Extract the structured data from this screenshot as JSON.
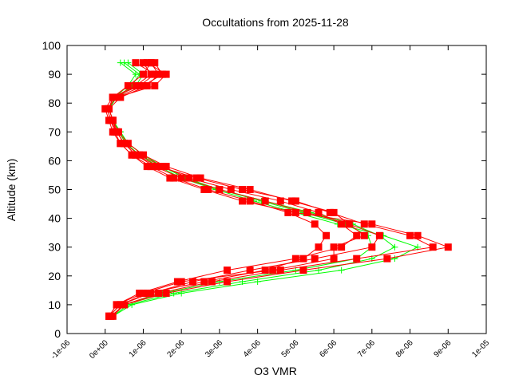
{
  "chart_data": {
    "type": "line",
    "title": "Occultations from 2025-11-28",
    "xlabel": "O3 VMR",
    "ylabel": "Altitude (km)",
    "xlim": [
      -1e-06,
      1e-05
    ],
    "ylim": [
      0,
      100
    ],
    "grid": false,
    "legend": "none",
    "x_tick_labels": [
      "-1e-06",
      "0e+00",
      "1e-06",
      "2e-06",
      "3e-06",
      "4e-06",
      "5e-06",
      "6e-06",
      "7e-06",
      "8e-06",
      "9e-06",
      "1e-05"
    ],
    "x_ticks": [
      -1e-06,
      0,
      1e-06,
      2e-06,
      3e-06,
      4e-06,
      5e-06,
      6e-06,
      7e-06,
      8e-06,
      9e-06,
      1e-05
    ],
    "y_tick_labels": [
      "0",
      "10",
      "20",
      "30",
      "40",
      "50",
      "60",
      "70",
      "80",
      "90",
      "100"
    ],
    "y_ticks": [
      0,
      10,
      20,
      30,
      40,
      50,
      60,
      70,
      80,
      90,
      100
    ],
    "altitude": [
      6,
      10,
      14,
      18,
      22,
      26,
      30,
      34,
      38,
      42,
      46,
      50,
      54,
      58,
      62,
      66,
      70,
      74,
      78,
      82,
      86,
      90,
      94
    ],
    "vmr_scale": 1e-06,
    "series": [
      {
        "group": "green",
        "marker": "plus",
        "color": "#00ff00",
        "values": [
          0.2,
          0.6,
          1.8,
          3.6,
          5.6,
          7.0,
          7.6,
          7.2,
          6.5,
          5.4,
          4.2,
          3.0,
          2.1,
          1.5,
          1.0,
          0.6,
          0.4,
          0.2,
          0.1,
          0.3,
          0.8,
          1.0,
          0.6
        ]
      },
      {
        "group": "green",
        "marker": "plus",
        "color": "#00ff00",
        "values": [
          0.2,
          0.7,
          2.0,
          4.0,
          6.2,
          7.6,
          8.2,
          7.3,
          6.1,
          5.0,
          3.9,
          2.9,
          2.0,
          1.4,
          0.9,
          0.55,
          0.35,
          0.2,
          0.1,
          0.3,
          0.7,
          0.9,
          0.5
        ]
      },
      {
        "group": "green",
        "marker": "plus",
        "color": "#00ff00",
        "values": [
          0.15,
          0.5,
          1.5,
          3.0,
          5.0,
          6.6,
          7.0,
          6.9,
          6.3,
          5.2,
          4.1,
          3.0,
          2.1,
          1.5,
          1.0,
          0.6,
          0.4,
          0.2,
          0.1,
          0.25,
          0.6,
          0.8,
          0.4
        ]
      },
      {
        "group": "red",
        "marker": "square",
        "color": "#ff0000",
        "values": [
          0.1,
          0.4,
          1.2,
          2.3,
          3.8,
          5.5,
          7.0,
          7.2,
          6.4,
          5.3,
          4.2,
          3.0,
          2.0,
          1.3,
          0.8,
          0.5,
          0.3,
          0.2,
          0.1,
          0.2,
          0.8,
          1.2,
          1.0
        ]
      },
      {
        "group": "red",
        "marker": "square",
        "color": "#ff0000",
        "values": [
          0.1,
          0.3,
          0.9,
          1.9,
          3.2,
          5.0,
          6.2,
          6.6,
          6.2,
          5.6,
          4.6,
          3.3,
          2.2,
          1.5,
          0.9,
          0.5,
          0.3,
          0.15,
          0.05,
          0.3,
          1.0,
          1.5,
          1.3
        ]
      },
      {
        "group": "red",
        "marker": "square",
        "color": "#ff0000",
        "values": [
          0.2,
          0.5,
          1.4,
          2.8,
          4.6,
          6.6,
          8.6,
          8.0,
          6.8,
          5.9,
          5.0,
          3.6,
          2.4,
          1.4,
          0.8,
          0.5,
          0.3,
          0.2,
          0.1,
          0.2,
          0.6,
          1.0,
          1.2
        ]
      },
      {
        "group": "red",
        "marker": "square",
        "color": "#ff0000",
        "values": [
          0.1,
          0.4,
          1.1,
          2.6,
          4.2,
          5.2,
          5.6,
          5.8,
          5.5,
          4.8,
          3.8,
          2.7,
          1.8,
          1.2,
          0.7,
          0.4,
          0.25,
          0.15,
          0.05,
          0.3,
          1.3,
          1.6,
          1.1
        ]
      },
      {
        "group": "red",
        "marker": "square",
        "color": "#ff0000",
        "values": [
          0.15,
          0.5,
          1.6,
          3.2,
          5.2,
          7.4,
          9.0,
          8.2,
          7.0,
          5.0,
          3.6,
          2.6,
          1.7,
          1.1,
          0.7,
          0.4,
          0.2,
          0.1,
          0.0,
          0.2,
          0.9,
          1.3,
          0.8
        ]
      },
      {
        "group": "red",
        "marker": "square",
        "color": "#ff0000",
        "values": [
          0.1,
          0.3,
          1.0,
          2.0,
          4.4,
          6.0,
          6.0,
          6.8,
          6.4,
          6.0,
          4.9,
          3.8,
          2.5,
          1.6,
          1.0,
          0.6,
          0.35,
          0.2,
          0.1,
          0.4,
          1.1,
          1.4,
          1.2
        ]
      }
    ]
  }
}
